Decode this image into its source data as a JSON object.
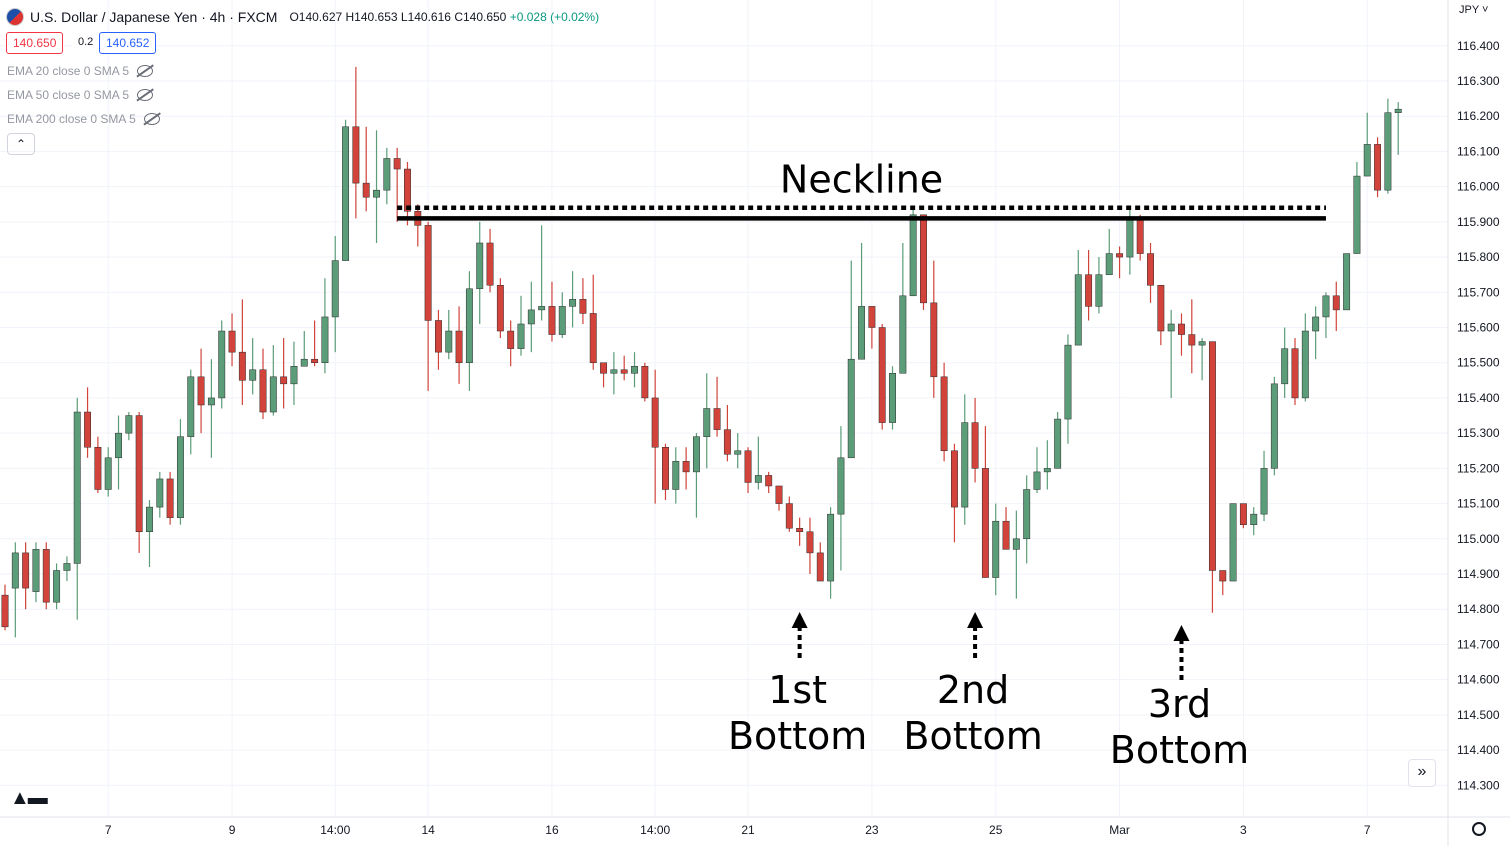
{
  "header": {
    "symbol": "U.S. Dollar / Japanese Yen · 4h · FXCM",
    "o": "O140.627",
    "h": "H140.653",
    "l": "L140.616",
    "c": "C140.650",
    "change": "+0.028 (+0.02%)",
    "sell_price": "140.650",
    "spread": "0.2",
    "buy_price": "140.652"
  },
  "indicators": [
    {
      "label": "EMA 20 close 0 SMA 5"
    },
    {
      "label": "EMA 50 close 0 SMA 5"
    },
    {
      "label": "EMA 200 close 0 SMA 5"
    }
  ],
  "collapse_icon": "chevron-up-icon",
  "currency": "JPY",
  "chart_data": {
    "type": "candlestick",
    "y_axis_ticks": [
      114.3,
      114.4,
      114.5,
      114.6,
      114.7,
      114.8,
      114.9,
      115.0,
      115.1,
      115.2,
      115.3,
      115.4,
      115.5,
      115.6,
      115.7,
      115.8,
      115.9,
      116.0,
      116.1,
      116.2,
      116.3,
      116.4
    ],
    "y_axis_labels": [
      "114.300",
      "114.400",
      "114.500",
      "114.600",
      "114.700",
      "114.800",
      "114.900",
      "115.000",
      "115.100",
      "115.200",
      "115.300",
      "115.400",
      "115.500",
      "115.600",
      "115.700",
      "115.800",
      "115.900",
      "116.000",
      "116.100",
      "116.200",
      "116.300",
      "116.400"
    ],
    "ylim": [
      114.21,
      116.53
    ],
    "x_axis_labels": [
      "7",
      "9",
      "14:00",
      "14",
      "16",
      "14:00",
      "21",
      "23",
      "25",
      "Mar",
      "3",
      "7"
    ],
    "x_axis_label_index": [
      10,
      22,
      32,
      41,
      53,
      63,
      72,
      84,
      96,
      108,
      120,
      132
    ],
    "candles": [
      [
        114.84,
        114.75,
        114.87,
        114.74
      ],
      [
        114.86,
        114.96,
        114.99,
        114.72
      ],
      [
        114.96,
        114.86,
        114.99,
        114.8
      ],
      [
        114.85,
        114.97,
        114.99,
        114.82
      ],
      [
        114.97,
        114.82,
        114.99,
        114.8
      ],
      [
        114.82,
        114.91,
        114.93,
        114.8
      ],
      [
        114.91,
        114.93,
        114.95,
        114.88
      ],
      [
        114.93,
        115.36,
        115.4,
        114.77
      ],
      [
        115.36,
        115.26,
        115.43,
        115.23
      ],
      [
        115.26,
        115.14,
        115.29,
        115.13
      ],
      [
        115.14,
        115.23,
        115.26,
        115.12
      ],
      [
        115.23,
        115.3,
        115.35,
        115.14
      ],
      [
        115.3,
        115.35,
        115.36,
        115.28
      ],
      [
        115.35,
        115.02,
        115.36,
        114.96
      ],
      [
        115.02,
        115.09,
        115.11,
        114.92
      ],
      [
        115.09,
        115.17,
        115.19,
        115.06
      ],
      [
        115.17,
        115.06,
        115.19,
        115.04
      ],
      [
        115.06,
        115.29,
        115.34,
        115.04
      ],
      [
        115.29,
        115.46,
        115.48,
        115.24
      ],
      [
        115.46,
        115.38,
        115.54,
        115.3
      ],
      [
        115.38,
        115.4,
        115.51,
        115.23
      ],
      [
        115.4,
        115.59,
        115.62,
        115.37
      ],
      [
        115.59,
        115.53,
        115.64,
        115.49
      ],
      [
        115.53,
        115.45,
        115.68,
        115.38
      ],
      [
        115.45,
        115.48,
        115.57,
        115.41
      ],
      [
        115.48,
        115.36,
        115.54,
        115.34
      ],
      [
        115.36,
        115.46,
        115.55,
        115.35
      ],
      [
        115.46,
        115.44,
        115.57,
        115.37
      ],
      [
        115.44,
        115.49,
        115.56,
        115.38
      ],
      [
        115.49,
        115.51,
        115.59,
        115.49
      ],
      [
        115.51,
        115.5,
        115.62,
        115.49
      ],
      [
        115.5,
        115.63,
        115.74,
        115.47
      ],
      [
        115.63,
        115.79,
        115.86,
        115.53
      ],
      [
        115.79,
        116.17,
        116.19,
        115.82
      ],
      [
        116.17,
        116.01,
        116.34,
        115.91
      ],
      [
        116.01,
        115.97,
        116.17,
        115.93
      ],
      [
        115.97,
        115.99,
        116.16,
        115.84
      ],
      [
        115.99,
        116.08,
        116.11,
        115.95
      ],
      [
        116.08,
        116.05,
        116.11,
        115.9
      ],
      [
        116.05,
        115.93,
        116.07,
        115.89
      ],
      [
        115.93,
        115.89,
        115.95,
        115.83
      ],
      [
        115.89,
        115.62,
        115.9,
        115.42
      ],
      [
        115.62,
        115.53,
        115.65,
        115.48
      ],
      [
        115.53,
        115.59,
        115.65,
        115.51
      ],
      [
        115.59,
        115.5,
        115.66,
        115.44
      ],
      [
        115.5,
        115.71,
        115.76,
        115.42
      ],
      [
        115.71,
        115.84,
        115.9,
        115.61
      ],
      [
        115.84,
        115.72,
        115.88,
        115.7
      ],
      [
        115.72,
        115.59,
        115.74,
        115.57
      ],
      [
        115.59,
        115.54,
        115.62,
        115.49
      ],
      [
        115.54,
        115.61,
        115.69,
        115.52
      ],
      [
        115.61,
        115.65,
        115.73,
        115.53
      ],
      [
        115.65,
        115.66,
        115.89,
        115.62
      ],
      [
        115.66,
        115.58,
        115.73,
        115.56
      ],
      [
        115.58,
        115.66,
        115.7,
        115.57
      ],
      [
        115.66,
        115.68,
        115.76,
        115.6
      ],
      [
        115.68,
        115.64,
        115.74,
        115.61
      ],
      [
        115.64,
        115.5,
        115.75,
        115.48
      ],
      [
        115.5,
        115.47,
        115.5,
        115.43
      ],
      [
        115.47,
        115.48,
        115.53,
        115.41
      ],
      [
        115.48,
        115.47,
        115.52,
        115.45
      ],
      [
        115.47,
        115.49,
        115.53,
        115.43
      ],
      [
        115.49,
        115.4,
        115.5,
        115.39
      ],
      [
        115.4,
        115.26,
        115.48,
        115.1
      ],
      [
        115.26,
        115.14,
        115.27,
        115.11
      ],
      [
        115.14,
        115.22,
        115.26,
        115.1
      ],
      [
        115.22,
        115.19,
        115.26,
        115.14
      ],
      [
        115.19,
        115.29,
        115.3,
        115.06
      ],
      [
        115.29,
        115.37,
        115.47,
        115.2
      ],
      [
        115.37,
        115.31,
        115.46,
        115.29
      ],
      [
        115.31,
        115.24,
        115.38,
        115.22
      ],
      [
        115.24,
        115.25,
        115.3,
        115.2
      ],
      [
        115.25,
        115.16,
        115.26,
        115.13
      ],
      [
        115.16,
        115.18,
        115.29,
        115.14
      ],
      [
        115.18,
        115.15,
        115.19,
        115.13
      ],
      [
        115.15,
        115.1,
        115.15,
        115.08
      ],
      [
        115.1,
        115.03,
        115.12,
        115.02
      ],
      [
        115.03,
        115.02,
        115.06,
        114.98
      ],
      [
        115.02,
        114.96,
        115.06,
        114.9
      ],
      [
        114.96,
        114.88,
        114.99,
        114.88
      ],
      [
        114.88,
        115.07,
        115.09,
        114.83
      ],
      [
        115.07,
        115.23,
        115.32,
        114.91
      ],
      [
        115.23,
        115.51,
        115.79,
        115.23
      ],
      [
        115.51,
        115.66,
        115.84,
        115.59
      ],
      [
        115.66,
        115.6,
        115.66,
        115.54
      ],
      [
        115.6,
        115.33,
        115.61,
        115.31
      ],
      [
        115.33,
        115.47,
        115.49,
        115.31
      ],
      [
        115.47,
        115.69,
        115.84,
        115.48
      ],
      [
        115.69,
        115.92,
        115.94,
        115.76
      ],
      [
        115.92,
        115.67,
        115.92,
        115.65
      ],
      [
        115.67,
        115.46,
        115.79,
        115.4
      ],
      [
        115.46,
        115.25,
        115.5,
        115.22
      ],
      [
        115.25,
        115.09,
        115.27,
        114.99
      ],
      [
        115.09,
        115.33,
        115.41,
        115.04
      ],
      [
        115.33,
        115.2,
        115.4,
        115.16
      ],
      [
        115.2,
        114.89,
        115.32,
        114.89
      ],
      [
        114.89,
        115.05,
        115.1,
        114.84
      ],
      [
        115.05,
        114.97,
        115.09,
        114.97
      ],
      [
        114.97,
        115.0,
        115.08,
        114.83
      ],
      [
        115.0,
        115.14,
        115.18,
        114.93
      ],
      [
        115.14,
        115.19,
        115.26,
        115.13
      ],
      [
        115.19,
        115.2,
        115.28,
        115.14
      ],
      [
        115.2,
        115.34,
        115.36,
        115.25
      ],
      [
        115.34,
        115.55,
        115.58,
        115.27
      ],
      [
        115.55,
        115.75,
        115.82,
        115.55
      ],
      [
        115.75,
        115.66,
        115.82,
        115.62
      ],
      [
        115.66,
        115.75,
        115.8,
        115.64
      ],
      [
        115.75,
        115.81,
        115.88,
        115.75
      ],
      [
        115.81,
        115.8,
        115.83,
        115.74
      ],
      [
        115.8,
        115.91,
        115.94,
        115.75
      ],
      [
        115.91,
        115.81,
        115.92,
        115.79
      ],
      [
        115.81,
        115.72,
        115.84,
        115.67
      ],
      [
        115.72,
        115.59,
        115.72,
        115.55
      ],
      [
        115.59,
        115.61,
        115.65,
        115.4
      ],
      [
        115.61,
        115.58,
        115.64,
        115.52
      ],
      [
        115.58,
        115.55,
        115.68,
        115.47
      ],
      [
        115.55,
        115.56,
        115.57,
        115.45
      ],
      [
        115.56,
        114.91,
        115.56,
        114.79
      ],
      [
        114.91,
        114.88,
        114.91,
        114.84
      ],
      [
        114.88,
        115.1,
        115.03,
        114.97
      ],
      [
        115.1,
        115.04,
        115.09,
        115.03
      ],
      [
        115.04,
        115.07,
        115.09,
        115.01
      ],
      [
        115.07,
        115.2,
        115.25,
        115.05
      ],
      [
        115.2,
        115.44,
        115.46,
        115.18
      ],
      [
        115.44,
        115.54,
        115.6,
        115.4
      ],
      [
        115.54,
        115.4,
        115.57,
        115.38
      ],
      [
        115.4,
        115.59,
        115.64,
        115.39
      ],
      [
        115.59,
        115.63,
        115.66,
        115.51
      ],
      [
        115.63,
        115.69,
        115.7,
        115.57
      ],
      [
        115.69,
        115.65,
        115.73,
        115.59
      ],
      [
        115.65,
        115.81,
        115.8,
        115.67
      ],
      [
        115.81,
        116.03,
        116.07,
        115.81
      ],
      [
        116.03,
        116.12,
        116.21,
        116.03
      ],
      [
        116.12,
        115.99,
        116.14,
        115.97
      ],
      [
        115.99,
        116.21,
        116.25,
        115.98
      ],
      [
        116.21,
        116.22,
        116.24,
        116.09
      ]
    ],
    "up_color": "#5b9c79",
    "down_color": "#d1433b",
    "annotations": {
      "neckline_label": "Neckline",
      "neckline_price": 115.91,
      "neckline_dotted_price": 115.94,
      "neckline_from_index": 38,
      "neckline_to_index": 128,
      "bottoms": [
        {
          "line1": "1st",
          "line2": "Bottom",
          "index": 77
        },
        {
          "line1": "2nd",
          "line2": "Bottom",
          "index": 94
        },
        {
          "line1": "3rd",
          "line2": "Bottom",
          "index": 114
        }
      ]
    }
  }
}
